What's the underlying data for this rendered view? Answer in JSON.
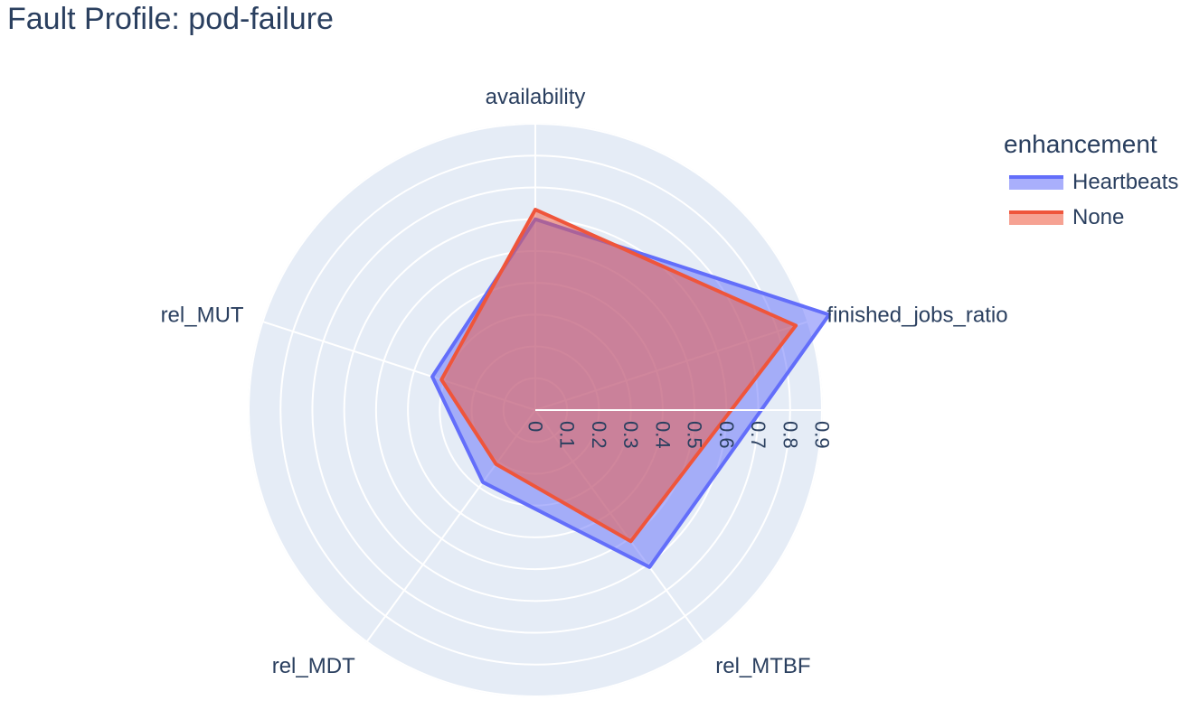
{
  "title": "Fault Profile: pod-failure",
  "legend": {
    "title": "enhancement"
  },
  "colors": {
    "polar_background": "#e5ecf6",
    "grid": "#ffffff",
    "text": "#2a3f5f"
  },
  "chart_data": {
    "type": "radar",
    "axes": [
      "availability",
      "rel_MUT",
      "rel_MDT",
      "rel_MTBF",
      "finished_jobs_ratio"
    ],
    "radial_ticks": [
      "0",
      "0.1",
      "0.2",
      "0.3",
      "0.4",
      "0.5",
      "0.6",
      "0.7",
      "0.8",
      "0.9"
    ],
    "radial_range": [
      0,
      0.9
    ],
    "series": [
      {
        "name": "Heartbeats",
        "color": "#636efa",
        "values": [
          0.6,
          0.34,
          0.28,
          0.61,
          0.97
        ]
      },
      {
        "name": "None",
        "color": "#ef553b",
        "values": [
          0.63,
          0.31,
          0.21,
          0.51,
          0.86
        ]
      }
    ]
  }
}
